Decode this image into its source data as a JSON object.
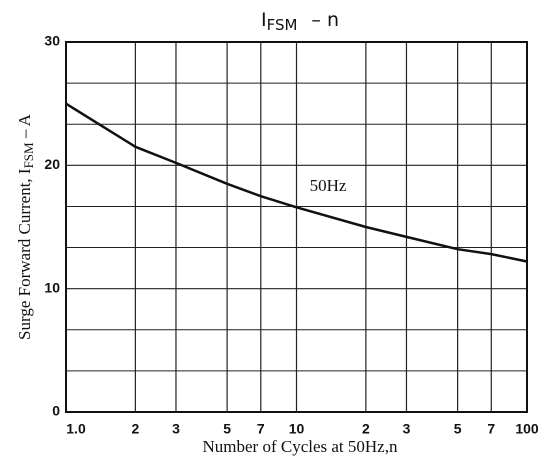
{
  "chart_data": {
    "type": "line",
    "title": {
      "text": "I",
      "sub": "FSM",
      "rest": "–  n"
    },
    "x_label": "Number of Cycles at 50Hz,n",
    "y_label": {
      "text": "Surge Forward Current, I",
      "sub": "FSM",
      "rest": " – A"
    },
    "annotation": "50Hz",
    "x": [
      1,
      2,
      3,
      5,
      7,
      10,
      20,
      30,
      50,
      70,
      100
    ],
    "series": [
      {
        "name": "50Hz",
        "color": "#111111",
        "values": [
          25,
          21.5,
          20.2,
          18.5,
          17.5,
          16.6,
          15,
          14.2,
          13.2,
          12.8,
          12.2
        ]
      }
    ],
    "x_log": true,
    "xlim": [
      1,
      100
    ],
    "xticks": [
      {
        "value": 1,
        "label": "1.0"
      },
      2,
      3,
      5,
      7,
      10,
      {
        "value": 20,
        "label": "2"
      },
      {
        "value": 30,
        "label": "3"
      },
      {
        "value": 50,
        "label": "5"
      },
      {
        "value": 70,
        "label": "7"
      },
      100
    ],
    "ylim": [
      0,
      30
    ],
    "yticks": [
      0,
      10,
      20,
      30
    ],
    "y_grid_subdivisions": 3,
    "grid": true
  }
}
